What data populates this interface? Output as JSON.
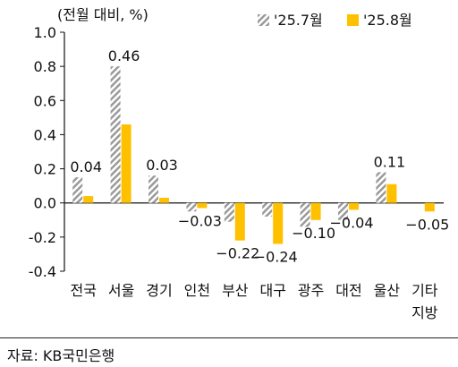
{
  "chart_data": {
    "type": "bar",
    "unit_label": "(전월 대비, %)",
    "categories": [
      "전국",
      "서울",
      "경기",
      "인천",
      "부산",
      "대구",
      "광주",
      "대전",
      "울산",
      "기타\n지방"
    ],
    "series": [
      {
        "name": "'25.7월",
        "values": [
          0.15,
          0.8,
          0.16,
          -0.05,
          -0.11,
          -0.08,
          -0.14,
          -0.1,
          0.18,
          0.0
        ],
        "color": "#9a9a9a",
        "pattern": "diagonal-hatch"
      },
      {
        "name": "'25.8월",
        "values": [
          0.04,
          0.46,
          0.03,
          -0.03,
          -0.22,
          -0.24,
          -0.1,
          -0.04,
          0.11,
          -0.05
        ],
        "color": "#FFC000"
      }
    ],
    "data_labels": [
      "0.04",
      "0.46",
      "0.03",
      "−0.03",
      "−0.22",
      "−0.24",
      "−0.10",
      "−0.04",
      "0.11",
      "−0.05"
    ],
    "ylim": [
      -0.4,
      1.0
    ],
    "yticks": [
      "1.0",
      "0.8",
      "0.6",
      "0.4",
      "0.2",
      "0.0",
      "-0.2",
      "-0.4"
    ],
    "legend_position": "top-right",
    "grid": false
  },
  "source": "자료: KB국민은행"
}
